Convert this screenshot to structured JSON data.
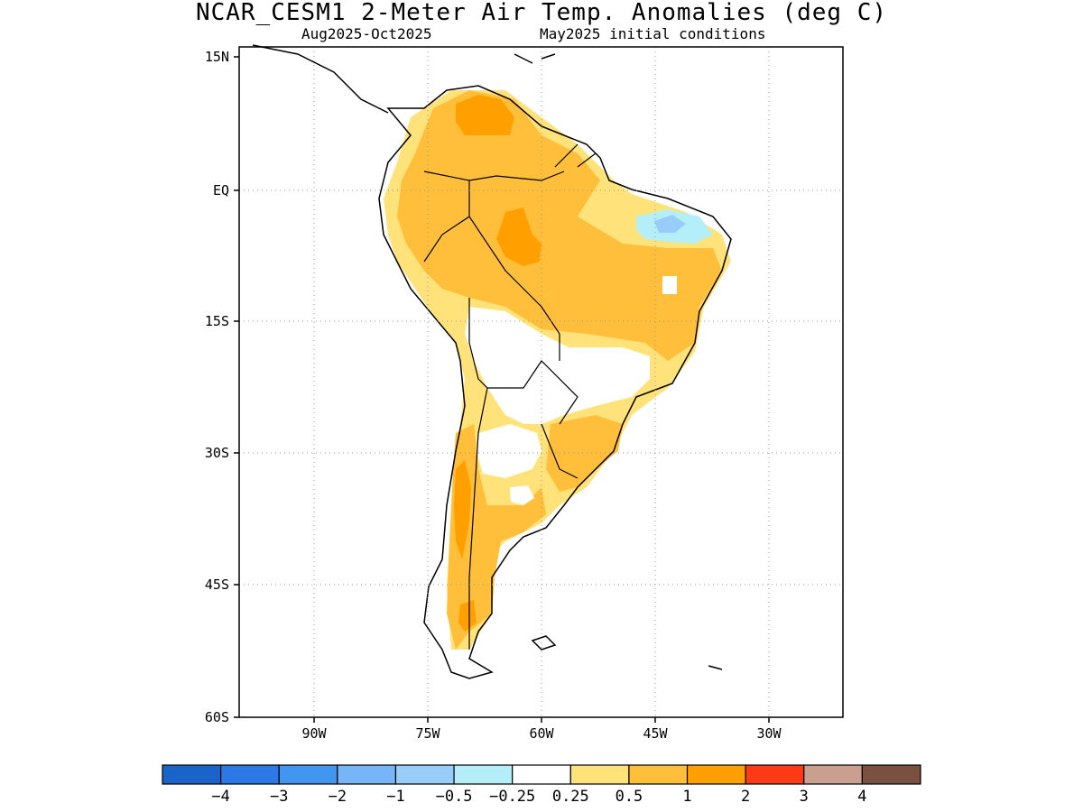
{
  "header": {
    "title": "NCAR_CESM1 2-Meter Air Temp. Anomalies (deg C)",
    "period": "Aug2025-Oct2025",
    "init": "May2025 initial conditions"
  },
  "map": {
    "lat_labels": [
      "15N",
      "EQ",
      "15S",
      "30S",
      "45S",
      "60S"
    ],
    "lon_labels": [
      "90W",
      "75W",
      "60W",
      "45W",
      "30W"
    ],
    "lat_range": [
      -60,
      15
    ],
    "lon_range": [
      -100,
      -20
    ],
    "grid": "dotted"
  },
  "colorbar": {
    "colors": [
      "#1a63c9",
      "#2a79e6",
      "#4296f0",
      "#76b5f7",
      "#98cdf9",
      "#b4eff9",
      "#ffffff",
      "#ffe27a",
      "#ffbf3a",
      "#ffa000",
      "#ff3a14",
      "#c9a090",
      "#7a5040"
    ],
    "labels": [
      "-4",
      "-3",
      "-2",
      "-1",
      "-0.5",
      "-0.25",
      "0.25",
      "0.5",
      "1",
      "2",
      "3",
      "4"
    ]
  },
  "legend": {
    "land_outline": "#000000",
    "anomaly_regions": [
      {
        "name": "northern-south-america",
        "color": "#ffbf3a"
      },
      {
        "name": "venezuela-hotspot",
        "color": "#ffa000"
      },
      {
        "name": "amazon-hotspot",
        "color": "#ffa000"
      },
      {
        "name": "northeast-brazil-cool",
        "color": "#98cdf9"
      },
      {
        "name": "southern-brazil",
        "color": "#ffbf3a"
      },
      {
        "name": "patagonia-warm",
        "color": "#ffbf3a"
      },
      {
        "name": "andes-warm",
        "color": "#ffa000"
      }
    ]
  }
}
